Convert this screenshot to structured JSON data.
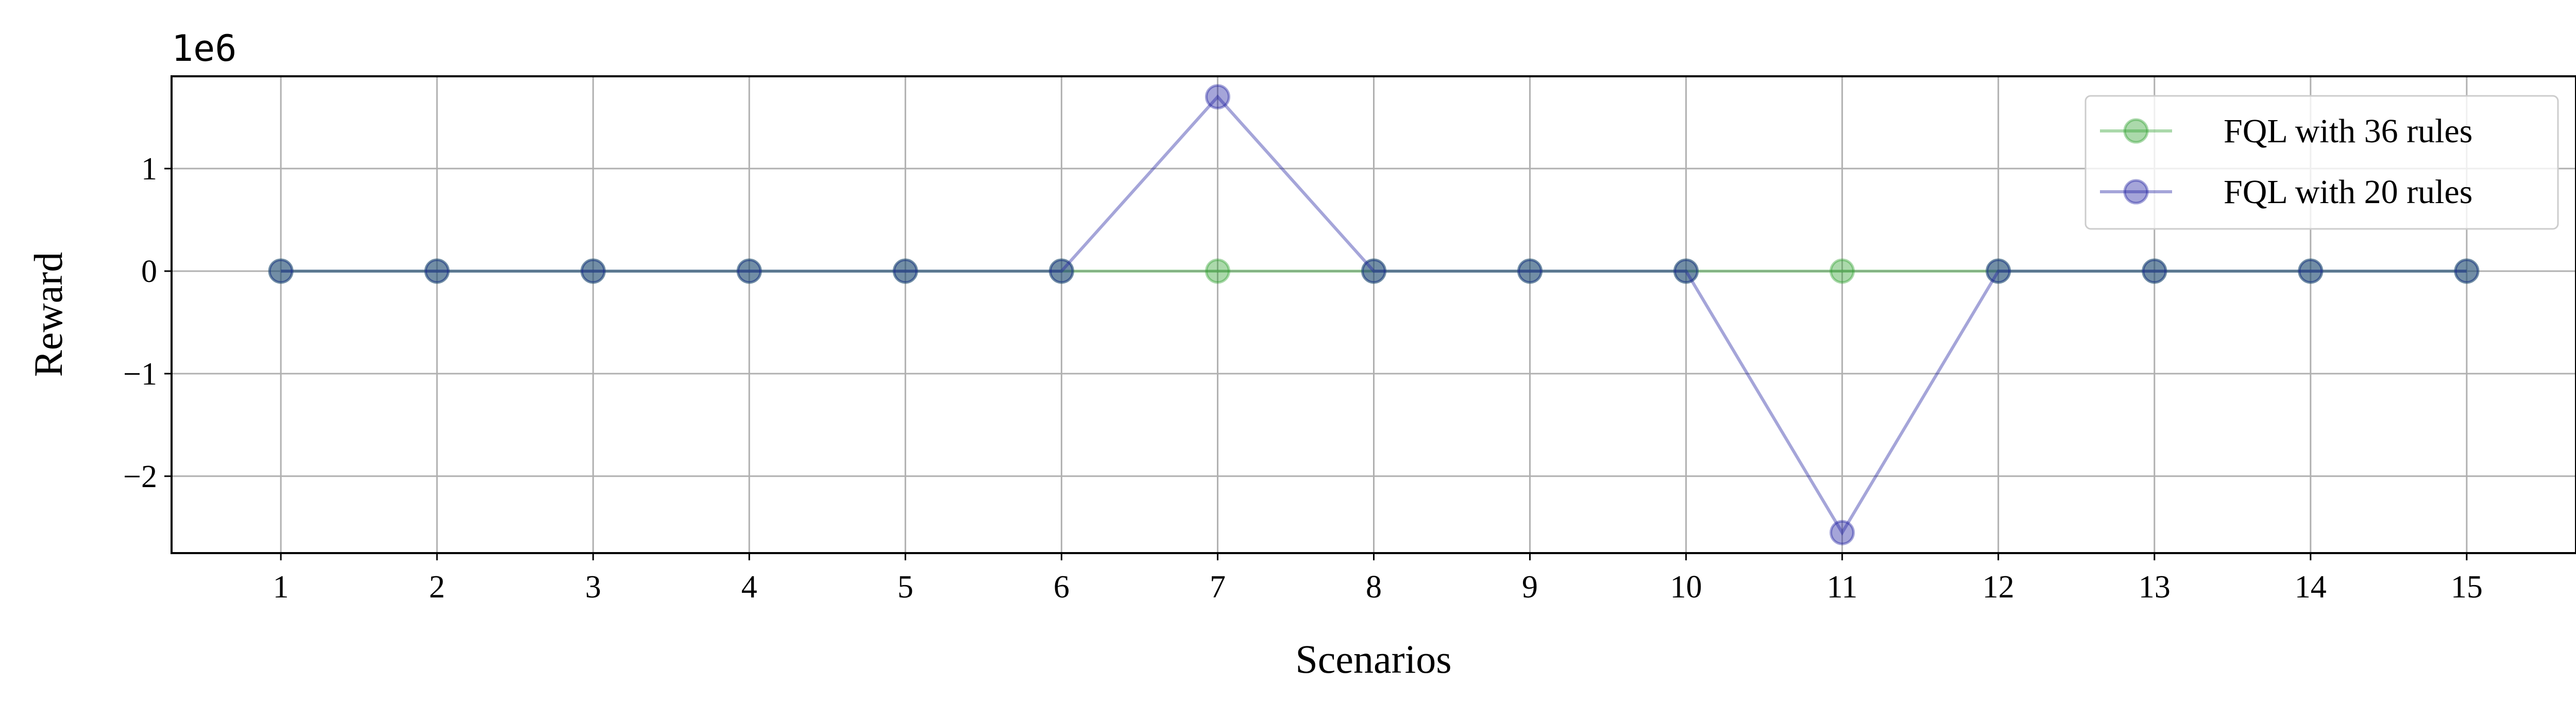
{
  "chart_data": {
    "type": "line",
    "xlabel": "Scenarios",
    "ylabel": "Reward",
    "y_offset_label": "1e6",
    "x": [
      1,
      2,
      3,
      4,
      5,
      6,
      7,
      8,
      9,
      10,
      11,
      12,
      13,
      14,
      15
    ],
    "xtick_labels": [
      "1",
      "2",
      "3",
      "4",
      "5",
      "6",
      "7",
      "8",
      "9",
      "10",
      "11",
      "12",
      "13",
      "14",
      "15"
    ],
    "yticks": [
      1,
      0,
      -1,
      -2
    ],
    "ytick_labels": [
      "1",
      "0",
      "−1",
      "−2"
    ],
    "xlim": [
      0.3,
      15.7
    ],
    "ylim": [
      -2.75,
      1.9
    ],
    "grid": true,
    "legend_position": "top-right",
    "series": [
      {
        "name": "FQL with 36 rules",
        "color": "#2ca02c",
        "marker": "circle",
        "values": [
          0,
          0,
          0,
          0,
          0,
          0,
          0,
          0,
          0,
          0,
          0,
          0,
          0,
          0,
          0
        ]
      },
      {
        "name": "FQL with 20 rules",
        "color": "#1f1f9f",
        "marker": "circle",
        "values": [
          0,
          0,
          0,
          0,
          0,
          0,
          1.7,
          0,
          0,
          0,
          -2.55,
          0,
          0,
          0,
          0
        ]
      }
    ]
  }
}
